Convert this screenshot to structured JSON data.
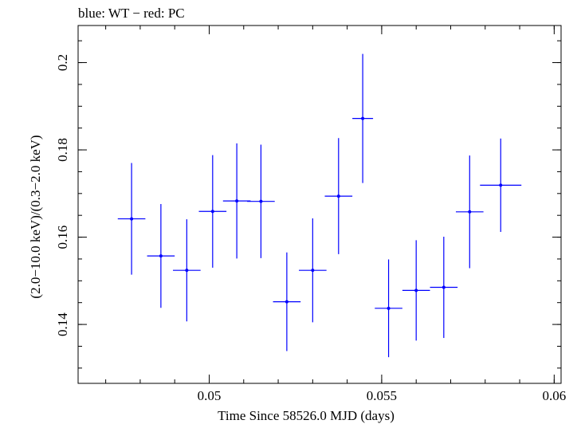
{
  "chart_data": {
    "type": "scatter",
    "title": "blue: WT − red: PC",
    "xlabel": "Time Since 58526.0 MJD (days)",
    "ylabel": "(2.0−10.0 keV)/(0.3−2.0 keV)",
    "xlim": [
      0.0462,
      0.0602
    ],
    "ylim": [
      0.1265,
      0.2085
    ],
    "xticks": [
      {
        "value": 0.05,
        "label": "0.05"
      },
      {
        "value": 0.055,
        "label": "0.055"
      },
      {
        "value": 0.06,
        "label": "0.06"
      }
    ],
    "yticks": [
      {
        "value": 0.14,
        "label": "0.14"
      },
      {
        "value": 0.16,
        "label": "0.16"
      },
      {
        "value": 0.18,
        "label": "0.18"
      },
      {
        "value": 0.2,
        "label": "0.2"
      }
    ],
    "xminor_step": 0.001,
    "yminor_step": 0.005,
    "series": [
      {
        "name": "WT",
        "color": "#0000ff",
        "points": [
          {
            "x": 0.04775,
            "xerr": 0.0004,
            "y": 0.1642,
            "yerr_low": 0.0128,
            "yerr_high": 0.0128
          },
          {
            "x": 0.0486,
            "xerr": 0.0004,
            "y": 0.1557,
            "yerr_low": 0.0119,
            "yerr_high": 0.0119
          },
          {
            "x": 0.04935,
            "xerr": 0.0004,
            "y": 0.1524,
            "yerr_low": 0.0117,
            "yerr_high": 0.0117
          },
          {
            "x": 0.0501,
            "xerr": 0.0004,
            "y": 0.1659,
            "yerr_low": 0.0129,
            "yerr_high": 0.0129
          },
          {
            "x": 0.0508,
            "xerr": 0.0004,
            "y": 0.1683,
            "yerr_low": 0.0132,
            "yerr_high": 0.0132
          },
          {
            "x": 0.0515,
            "xerr": 0.0004,
            "y": 0.1682,
            "yerr_low": 0.013,
            "yerr_high": 0.013
          },
          {
            "x": 0.05225,
            "xerr": 0.0004,
            "y": 0.1452,
            "yerr_low": 0.0113,
            "yerr_high": 0.0113
          },
          {
            "x": 0.053,
            "xerr": 0.0004,
            "y": 0.1524,
            "yerr_low": 0.0119,
            "yerr_high": 0.0119
          },
          {
            "x": 0.05375,
            "xerr": 0.0004,
            "y": 0.1694,
            "yerr_low": 0.0133,
            "yerr_high": 0.0133
          },
          {
            "x": 0.05445,
            "xerr": 0.0003,
            "y": 0.1872,
            "yerr_low": 0.0148,
            "yerr_high": 0.0148
          },
          {
            "x": 0.0552,
            "xerr": 0.0004,
            "y": 0.1437,
            "yerr_low": 0.0112,
            "yerr_high": 0.0112
          },
          {
            "x": 0.056,
            "xerr": 0.0004,
            "y": 0.1478,
            "yerr_low": 0.0115,
            "yerr_high": 0.0115
          },
          {
            "x": 0.0568,
            "xerr": 0.0004,
            "y": 0.1485,
            "yerr_low": 0.0116,
            "yerr_high": 0.0116
          },
          {
            "x": 0.05755,
            "xerr": 0.0004,
            "y": 0.1658,
            "yerr_low": 0.0129,
            "yerr_high": 0.0129
          },
          {
            "x": 0.05845,
            "xerr": 0.0006,
            "y": 0.1719,
            "yerr_low": 0.0107,
            "yerr_high": 0.0107
          }
        ]
      }
    ]
  }
}
